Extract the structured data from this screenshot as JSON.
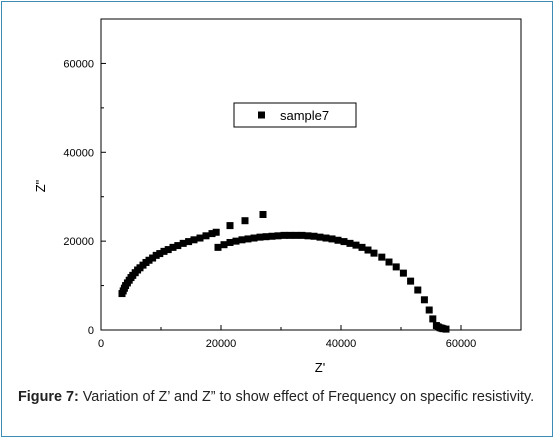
{
  "chart_data": {
    "type": "scatter",
    "title": "",
    "xlabel": "Z'",
    "ylabel": "Z\"",
    "xlim": [
      0,
      70000
    ],
    "ylim": [
      0,
      70000
    ],
    "xticks": [
      0,
      20000,
      40000,
      60000
    ],
    "yticks": [
      0,
      20000,
      40000,
      60000
    ],
    "xtick_labels": [
      "0",
      "20000",
      "40000",
      "60000"
    ],
    "ytick_labels": [
      "0",
      "20000",
      "40000",
      "60000"
    ],
    "grid": false,
    "legend_position": "upper-center",
    "marker": "square",
    "marker_color": "#000000",
    "series": [
      {
        "name": "sample7",
        "x": [
          3500,
          3700,
          3900,
          4100,
          4400,
          4700,
          5000,
          5300,
          5700,
          6100,
          6500,
          7000,
          7500,
          8000,
          8600,
          9200,
          9800,
          10500,
          11200,
          12000,
          12800,
          13700,
          14600,
          15500,
          16500,
          17500,
          18500,
          19500,
          20500,
          21500,
          22500,
          23500,
          24500,
          25500,
          26500,
          27500,
          28500,
          29500,
          30500,
          31500,
          32500,
          33500,
          34500,
          35500,
          36500,
          37500,
          38500,
          39500,
          40500,
          41500,
          42500,
          43500,
          44500,
          45500,
          46800,
          48000,
          49200,
          50400,
          51600,
          52800,
          53900,
          54700,
          55300,
          55900,
          56200,
          56500,
          56800,
          57000,
          57500,
          19200,
          21500,
          24000,
          27000
        ],
        "y": [
          8200,
          8800,
          9400,
          10000,
          10600,
          11200,
          11800,
          12300,
          12900,
          13500,
          14000,
          14600,
          15200,
          15700,
          16200,
          16800,
          17200,
          17700,
          18100,
          18600,
          19000,
          19500,
          19900,
          20300,
          20700,
          21200,
          21700,
          18600,
          19200,
          19700,
          20000,
          20300,
          20500,
          20700,
          20900,
          21000,
          21100,
          21200,
          21300,
          21300,
          21300,
          21300,
          21200,
          21100,
          20900,
          20700,
          20500,
          20200,
          19900,
          19500,
          19100,
          18600,
          18000,
          17300,
          16400,
          15300,
          14200,
          12800,
          11000,
          9000,
          6800,
          4500,
          2500,
          1000,
          700,
          500,
          400,
          300,
          200,
          22000,
          23500,
          24600,
          26000
        ]
      }
    ]
  },
  "caption": {
    "label": "Figure 7:",
    "text": " Variation of Z’ and Z” to show effect of Frequency on specific resistivity."
  }
}
